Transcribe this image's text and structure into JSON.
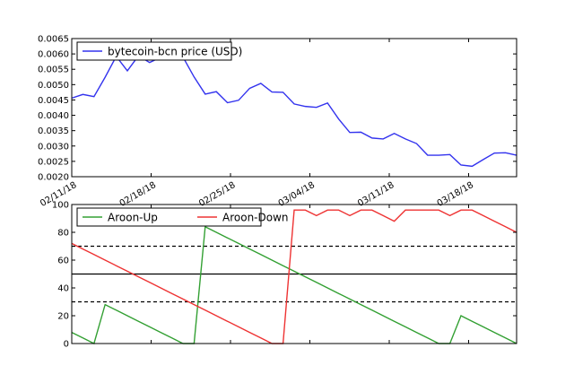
{
  "chart_data": [
    {
      "type": "line",
      "title": "",
      "xlabel": "",
      "ylabel": "",
      "x_tick_labels": [
        "02/11/18",
        "02/18/18",
        "02/25/18",
        "03/04/18",
        "03/11/18",
        "03/18/18"
      ],
      "y_ticks": [
        "0.0020",
        "0.0025",
        "0.0030",
        "0.0035",
        "0.0040",
        "0.0045",
        "0.0050",
        "0.0055",
        "0.0060",
        "0.0065"
      ],
      "ylim": [
        0.002,
        0.0065
      ],
      "legend": "top-left",
      "grid": false,
      "series": [
        {
          "name": "bytecoin-bcn price (USD)",
          "color": "#3333ee",
          "values": [
            0.00456,
            0.00468,
            0.00461,
            0.00524,
            0.00592,
            0.00545,
            0.00594,
            0.00572,
            0.00589,
            0.00592,
            0.0059,
            0.00525,
            0.00469,
            0.00477,
            0.00441,
            0.00449,
            0.00488,
            0.00504,
            0.00476,
            0.00475,
            0.00437,
            0.00429,
            0.00426,
            0.0044,
            0.00388,
            0.00344,
            0.00345,
            0.00326,
            0.00323,
            0.00341,
            0.00323,
            0.00308,
            0.0027,
            0.0027,
            0.00272,
            0.00238,
            0.00234,
            0.00256,
            0.00277,
            0.00278,
            0.0027
          ]
        }
      ]
    },
    {
      "type": "line",
      "title": "",
      "xlabel": "",
      "ylabel": "",
      "y_ticks": [
        "0",
        "20",
        "40",
        "60",
        "80",
        "100"
      ],
      "ylim": [
        0,
        100
      ],
      "legend": "top-left",
      "grid": false,
      "reference_lines": [
        {
          "value": 70,
          "style": "dashed"
        },
        {
          "value": 50,
          "style": "solid"
        },
        {
          "value": 30,
          "style": "dashed"
        }
      ],
      "series": [
        {
          "name": "Aroon-Up",
          "color": "#33a033",
          "values": [
            8,
            4,
            0,
            28,
            24,
            20,
            16,
            12,
            8,
            4,
            0,
            0,
            84,
            80,
            76,
            72,
            68,
            64,
            60,
            56,
            52,
            48,
            44,
            40,
            36,
            32,
            28,
            24,
            20,
            16,
            12,
            8,
            4,
            0,
            0,
            20,
            16,
            12,
            8,
            4,
            0
          ]
        },
        {
          "name": "Aroon-Down",
          "color": "#ee3333",
          "values": [
            72,
            68,
            64,
            60,
            56,
            52,
            48,
            44,
            40,
            36,
            32,
            28,
            24,
            20,
            16,
            12,
            8,
            4,
            0,
            0,
            96,
            96,
            92,
            96,
            96,
            92,
            96,
            96,
            92,
            88,
            96,
            96,
            96,
            96,
            92,
            96,
            96,
            92,
            88,
            84,
            80
          ]
        }
      ]
    }
  ]
}
